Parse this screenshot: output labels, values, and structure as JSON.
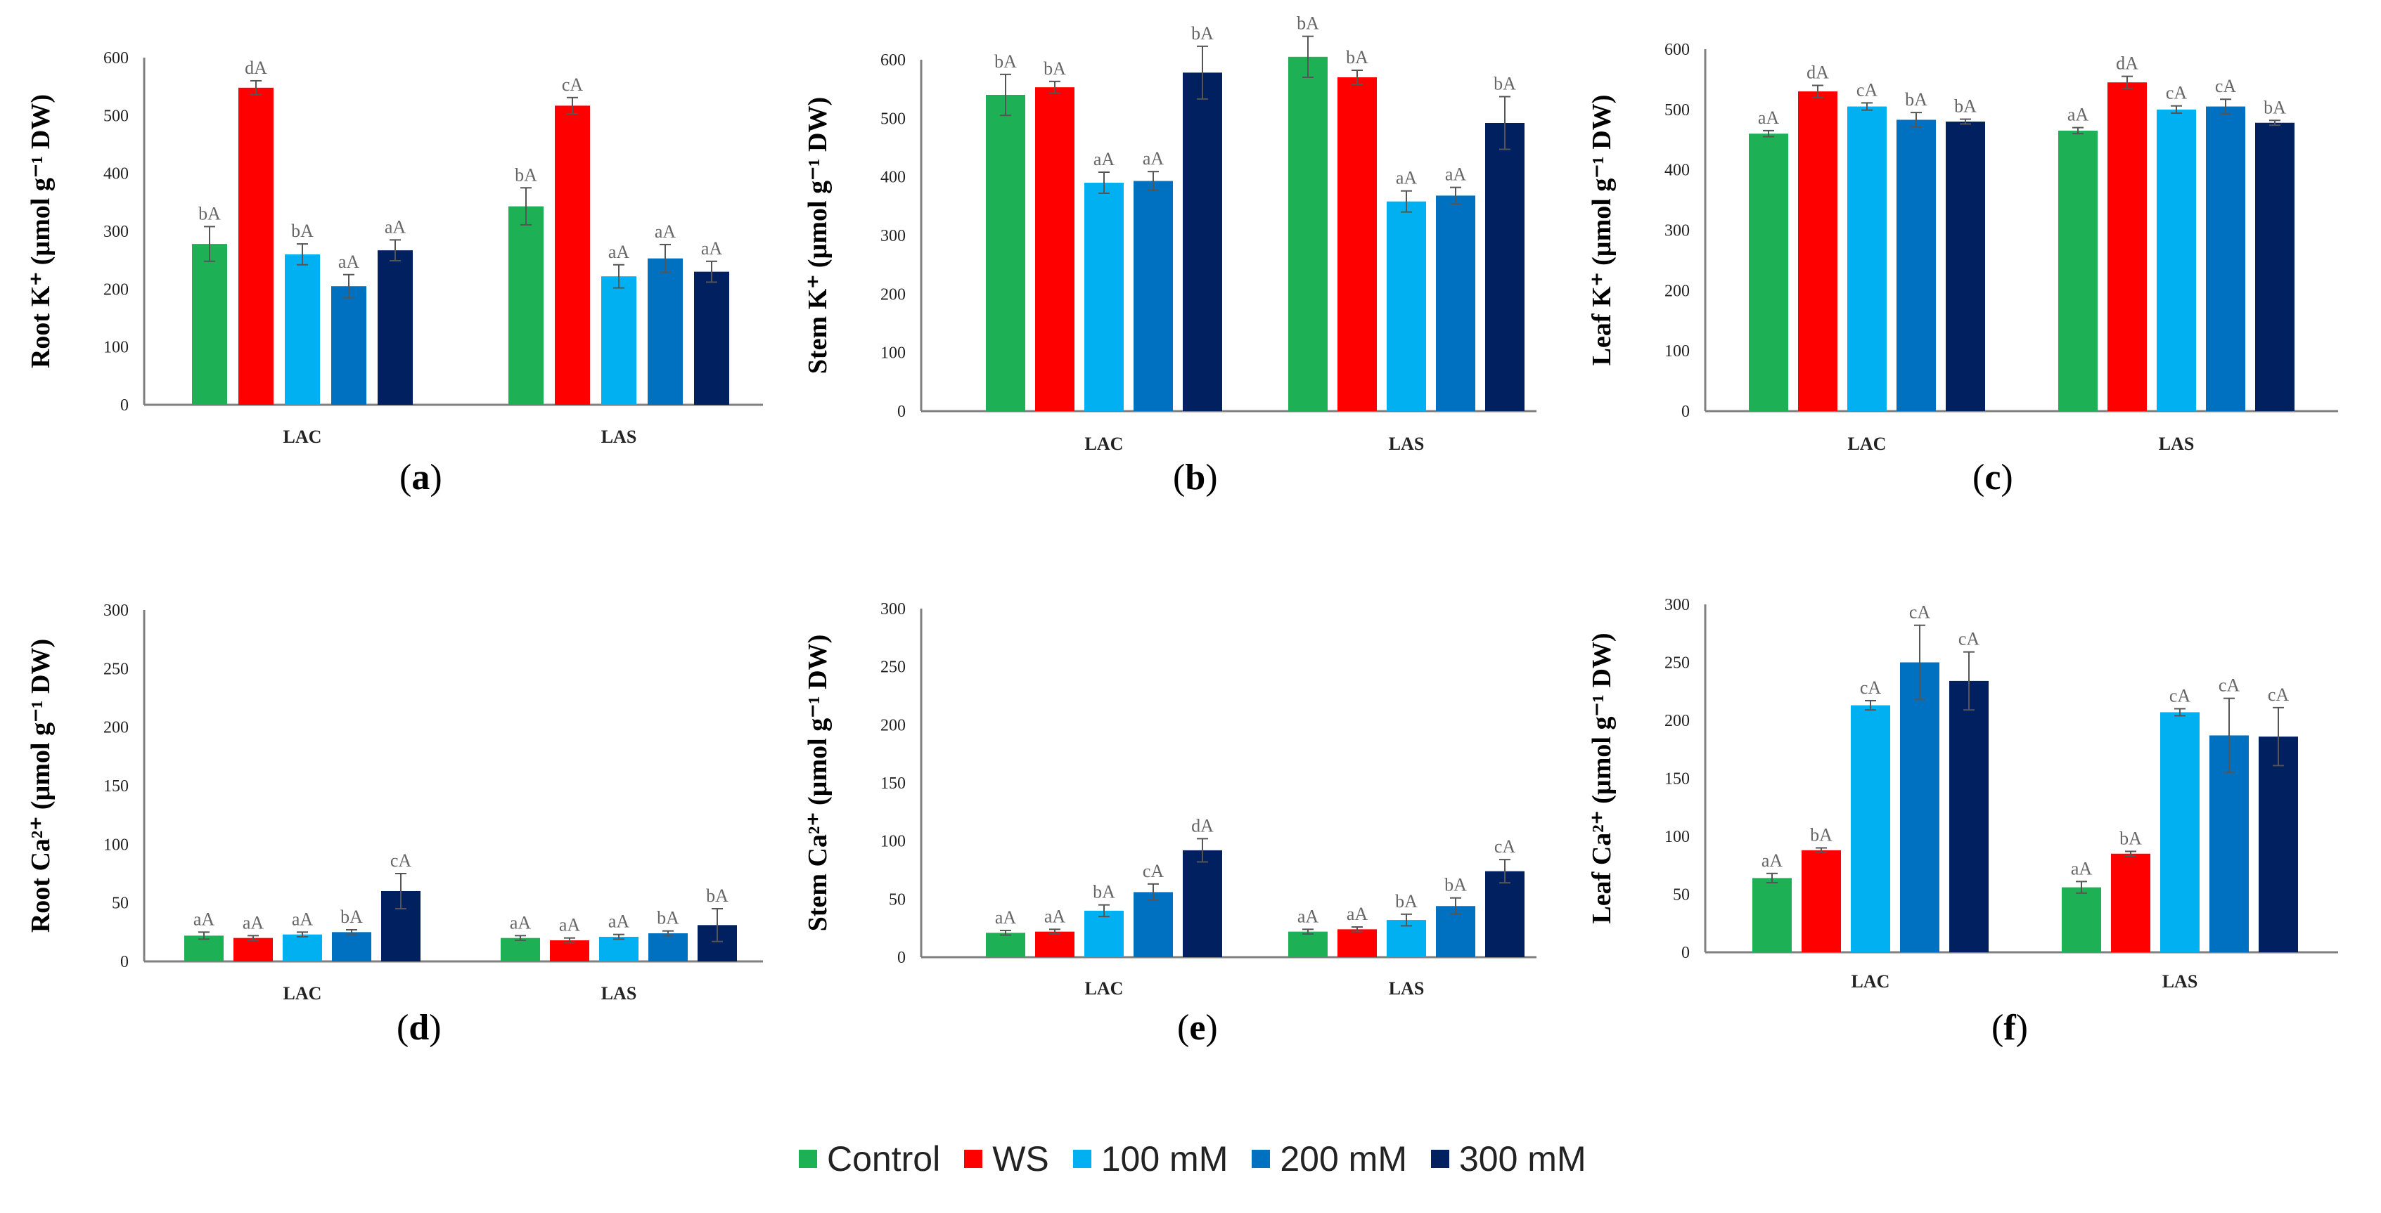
{
  "legend": [
    {
      "name": "Control",
      "color": "#1db054"
    },
    {
      "name": "WS",
      "color": "#ff0000"
    },
    {
      "name": "100 mM",
      "color": "#00b0f0"
    },
    {
      "name": "200 mM",
      "color": "#0070c0"
    },
    {
      "name": "300 mM",
      "color": "#002060"
    }
  ],
  "chart_data": [
    {
      "id": "a",
      "type": "bar",
      "panel_label": "a",
      "ylabel": "Root K⁺ (µmol g⁻¹ DW)",
      "ylim": [
        0,
        600
      ],
      "yticks": [
        0,
        100,
        200,
        300,
        400,
        500,
        600
      ],
      "categories": [
        "LAC",
        "LAS"
      ],
      "series": [
        {
          "name": "Control",
          "values": [
            278,
            343
          ],
          "errors": [
            30,
            32
          ],
          "labels": [
            "bA",
            "bA"
          ]
        },
        {
          "name": "WS",
          "values": [
            548,
            517
          ],
          "errors": [
            12,
            14
          ],
          "labels": [
            "dA",
            "cA"
          ]
        },
        {
          "name": "100 mM",
          "values": [
            260,
            222
          ],
          "errors": [
            18,
            20
          ],
          "labels": [
            "bA",
            "aA"
          ]
        },
        {
          "name": "200 mM",
          "values": [
            205,
            253
          ],
          "errors": [
            20,
            24
          ],
          "labels": [
            "aA",
            "aA"
          ]
        },
        {
          "name": "300 mM",
          "values": [
            267,
            230
          ],
          "errors": [
            18,
            18
          ],
          "labels": [
            "aA",
            "aA"
          ]
        }
      ]
    },
    {
      "id": "b",
      "type": "bar",
      "panel_label": "b",
      "ylabel": "Stem K⁺ (µmol g⁻¹ DW)",
      "ylim": [
        0,
        600
      ],
      "yticks": [
        0,
        100,
        200,
        300,
        400,
        500,
        600
      ],
      "categories": [
        "LAC",
        "LAS"
      ],
      "series": [
        {
          "name": "Control",
          "values": [
            540,
            605
          ],
          "errors": [
            35,
            35
          ],
          "labels": [
            "bA",
            "bA"
          ]
        },
        {
          "name": "WS",
          "values": [
            553,
            570
          ],
          "errors": [
            10,
            12
          ],
          "labels": [
            "bA",
            "bA"
          ]
        },
        {
          "name": "100 mM",
          "values": [
            390,
            358
          ],
          "errors": [
            18,
            18
          ],
          "labels": [
            "aA",
            "aA"
          ]
        },
        {
          "name": "200 mM",
          "values": [
            393,
            368
          ],
          "errors": [
            16,
            14
          ],
          "labels": [
            "aA",
            "aA"
          ]
        },
        {
          "name": "300 mM",
          "values": [
            578,
            492
          ],
          "errors": [
            45,
            45
          ],
          "labels": [
            "bA",
            "bA"
          ]
        }
      ]
    },
    {
      "id": "c",
      "type": "bar",
      "panel_label": "c",
      "ylabel": "Leaf K⁺ (µmol g⁻¹ DW)",
      "ylim": [
        0,
        600
      ],
      "yticks": [
        0,
        100,
        200,
        300,
        400,
        500,
        600
      ],
      "categories": [
        "LAC",
        "LAS"
      ],
      "series": [
        {
          "name": "Control",
          "values": [
            460,
            465
          ],
          "errors": [
            5,
            5
          ],
          "labels": [
            "aA",
            "aA"
          ]
        },
        {
          "name": "WS",
          "values": [
            530,
            545
          ],
          "errors": [
            10,
            10
          ],
          "labels": [
            "dA",
            "dA"
          ]
        },
        {
          "name": "100 mM",
          "values": [
            505,
            500
          ],
          "errors": [
            6,
            6
          ],
          "labels": [
            "cA",
            "cA"
          ]
        },
        {
          "name": "200 mM",
          "values": [
            483,
            505
          ],
          "errors": [
            12,
            12
          ],
          "labels": [
            "bA",
            "cA"
          ]
        },
        {
          "name": "300 mM",
          "values": [
            480,
            478
          ],
          "errors": [
            4,
            4
          ],
          "labels": [
            "bA",
            "bA"
          ]
        }
      ]
    },
    {
      "id": "d",
      "type": "bar",
      "panel_label": "d",
      "ylabel": "Root Ca²⁺ (µmol g⁻¹ DW)",
      "ylim": [
        0,
        300
      ],
      "yticks": [
        0,
        50,
        100,
        150,
        200,
        250,
        300
      ],
      "categories": [
        "LAC",
        "LAS"
      ],
      "series": [
        {
          "name": "Control",
          "values": [
            22,
            20
          ],
          "errors": [
            3,
            2
          ],
          "labels": [
            "aA",
            "aA"
          ]
        },
        {
          "name": "WS",
          "values": [
            20,
            18
          ],
          "errors": [
            2,
            2
          ],
          "labels": [
            "aA",
            "aA"
          ]
        },
        {
          "name": "100 mM",
          "values": [
            23,
            21
          ],
          "errors": [
            2,
            2
          ],
          "labels": [
            "aA",
            "aA"
          ]
        },
        {
          "name": "200 mM",
          "values": [
            25,
            24
          ],
          "errors": [
            2,
            2
          ],
          "labels": [
            "bA",
            "bA"
          ]
        },
        {
          "name": "300 mM",
          "values": [
            60,
            31
          ],
          "errors": [
            15,
            14
          ],
          "labels": [
            "cA",
            "bA"
          ]
        }
      ]
    },
    {
      "id": "e",
      "type": "bar",
      "panel_label": "e",
      "ylabel": "Stem Ca²⁺ (µmol g⁻¹ DW)",
      "ylim": [
        0,
        300
      ],
      "yticks": [
        0,
        50,
        100,
        150,
        200,
        250,
        300
      ],
      "categories": [
        "LAC",
        "LAS"
      ],
      "series": [
        {
          "name": "Control",
          "values": [
            21,
            22
          ],
          "errors": [
            2,
            2
          ],
          "labels": [
            "aA",
            "aA"
          ]
        },
        {
          "name": "WS",
          "values": [
            22,
            24
          ],
          "errors": [
            2,
            2
          ],
          "labels": [
            "aA",
            "aA"
          ]
        },
        {
          "name": "100 mM",
          "values": [
            40,
            32
          ],
          "errors": [
            5,
            5
          ],
          "labels": [
            "bA",
            "bA"
          ]
        },
        {
          "name": "200 mM",
          "values": [
            56,
            44
          ],
          "errors": [
            7,
            7
          ],
          "labels": [
            "cA",
            "bA"
          ]
        },
        {
          "name": "300 mM",
          "values": [
            92,
            74
          ],
          "errors": [
            10,
            10
          ],
          "labels": [
            "dA",
            "cA"
          ]
        }
      ]
    },
    {
      "id": "f",
      "type": "bar",
      "panel_label": "f",
      "ylabel": "Leaf Ca²⁺ (µmol g⁻¹ DW)",
      "ylim": [
        0,
        300
      ],
      "yticks": [
        0,
        50,
        100,
        150,
        200,
        250,
        300
      ],
      "categories": [
        "LAC",
        "LAS"
      ],
      "series": [
        {
          "name": "Control",
          "values": [
            64,
            56
          ],
          "errors": [
            4,
            5
          ],
          "labels": [
            "aA",
            "aA"
          ]
        },
        {
          "name": "WS",
          "values": [
            88,
            85
          ],
          "errors": [
            2,
            2
          ],
          "labels": [
            "bA",
            "bA"
          ]
        },
        {
          "name": "100 mM",
          "values": [
            213,
            207
          ],
          "errors": [
            4,
            3
          ],
          "labels": [
            "cA",
            "cA"
          ]
        },
        {
          "name": "200 mM",
          "values": [
            250,
            187
          ],
          "errors": [
            32,
            32
          ],
          "labels": [
            "cA",
            "cA"
          ]
        },
        {
          "name": "300 mM",
          "values": [
            234,
            186
          ],
          "errors": [
            25,
            25
          ],
          "labels": [
            "cA",
            "cA"
          ]
        }
      ]
    }
  ]
}
